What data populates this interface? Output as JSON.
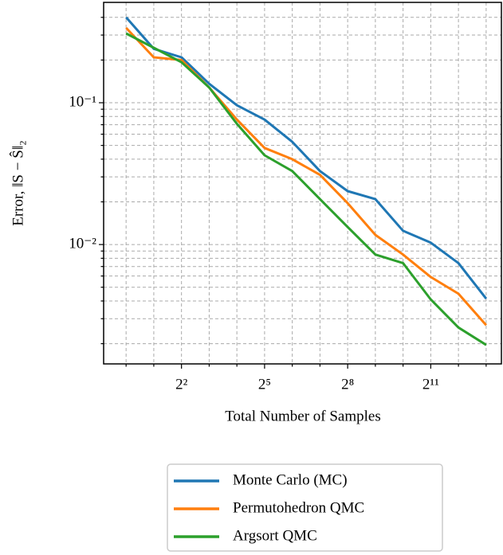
{
  "chart_data": {
    "type": "line",
    "xlabel": "Total Number of Samples",
    "ylabel": "Error, ‖S − Ŝ‖₂",
    "xscale": "log",
    "yscale": "log",
    "x": [
      1,
      2,
      4,
      8,
      16,
      32,
      64,
      128,
      256,
      512,
      1024,
      2048,
      4096,
      8192
    ],
    "series": [
      {
        "name": "Monte Carlo (MC)",
        "color": "#1f77b4",
        "values": [
          0.4,
          0.24,
          0.209,
          0.136,
          0.096,
          0.076,
          0.053,
          0.033,
          0.0238,
          0.0209,
          0.0125,
          0.0103,
          0.0074,
          0.00415
        ]
      },
      {
        "name": "Permutohedron QMC",
        "color": "#ff7f0e",
        "values": [
          0.337,
          0.209,
          0.2,
          0.128,
          0.076,
          0.048,
          0.04,
          0.031,
          0.0196,
          0.0117,
          0.0085,
          0.0059,
          0.0045,
          0.0027
        ]
      },
      {
        "name": "Argsort QMC",
        "color": "#2ca02c",
        "values": [
          0.308,
          0.244,
          0.193,
          0.128,
          0.071,
          0.0426,
          0.033,
          0.0209,
          0.0133,
          0.0085,
          0.0074,
          0.0041,
          0.0026,
          0.00196
        ]
      }
    ],
    "xlim": [
      0.57,
      12000
    ],
    "ylim": [
      0.00144,
      0.51
    ],
    "xticks": [
      {
        "value": 4,
        "label": "2²"
      },
      {
        "value": 32,
        "label": "2⁵"
      },
      {
        "value": 256,
        "label": "2⁸"
      },
      {
        "value": 2048,
        "label": "2¹¹"
      }
    ],
    "xminorticks": [
      1,
      2,
      8,
      16,
      64,
      128,
      512,
      1024,
      4096,
      8192
    ],
    "yticks": [
      {
        "value": 0.1,
        "label": "10⁻¹"
      },
      {
        "value": 0.01,
        "label": "10⁻²"
      }
    ],
    "yminorticks": [
      0.4,
      0.3,
      0.2,
      0.09,
      0.08,
      0.07,
      0.06,
      0.05,
      0.04,
      0.03,
      0.02,
      0.009,
      0.008,
      0.007,
      0.006,
      0.005,
      0.004,
      0.003,
      0.002
    ],
    "grid": true,
    "legend": "below"
  }
}
